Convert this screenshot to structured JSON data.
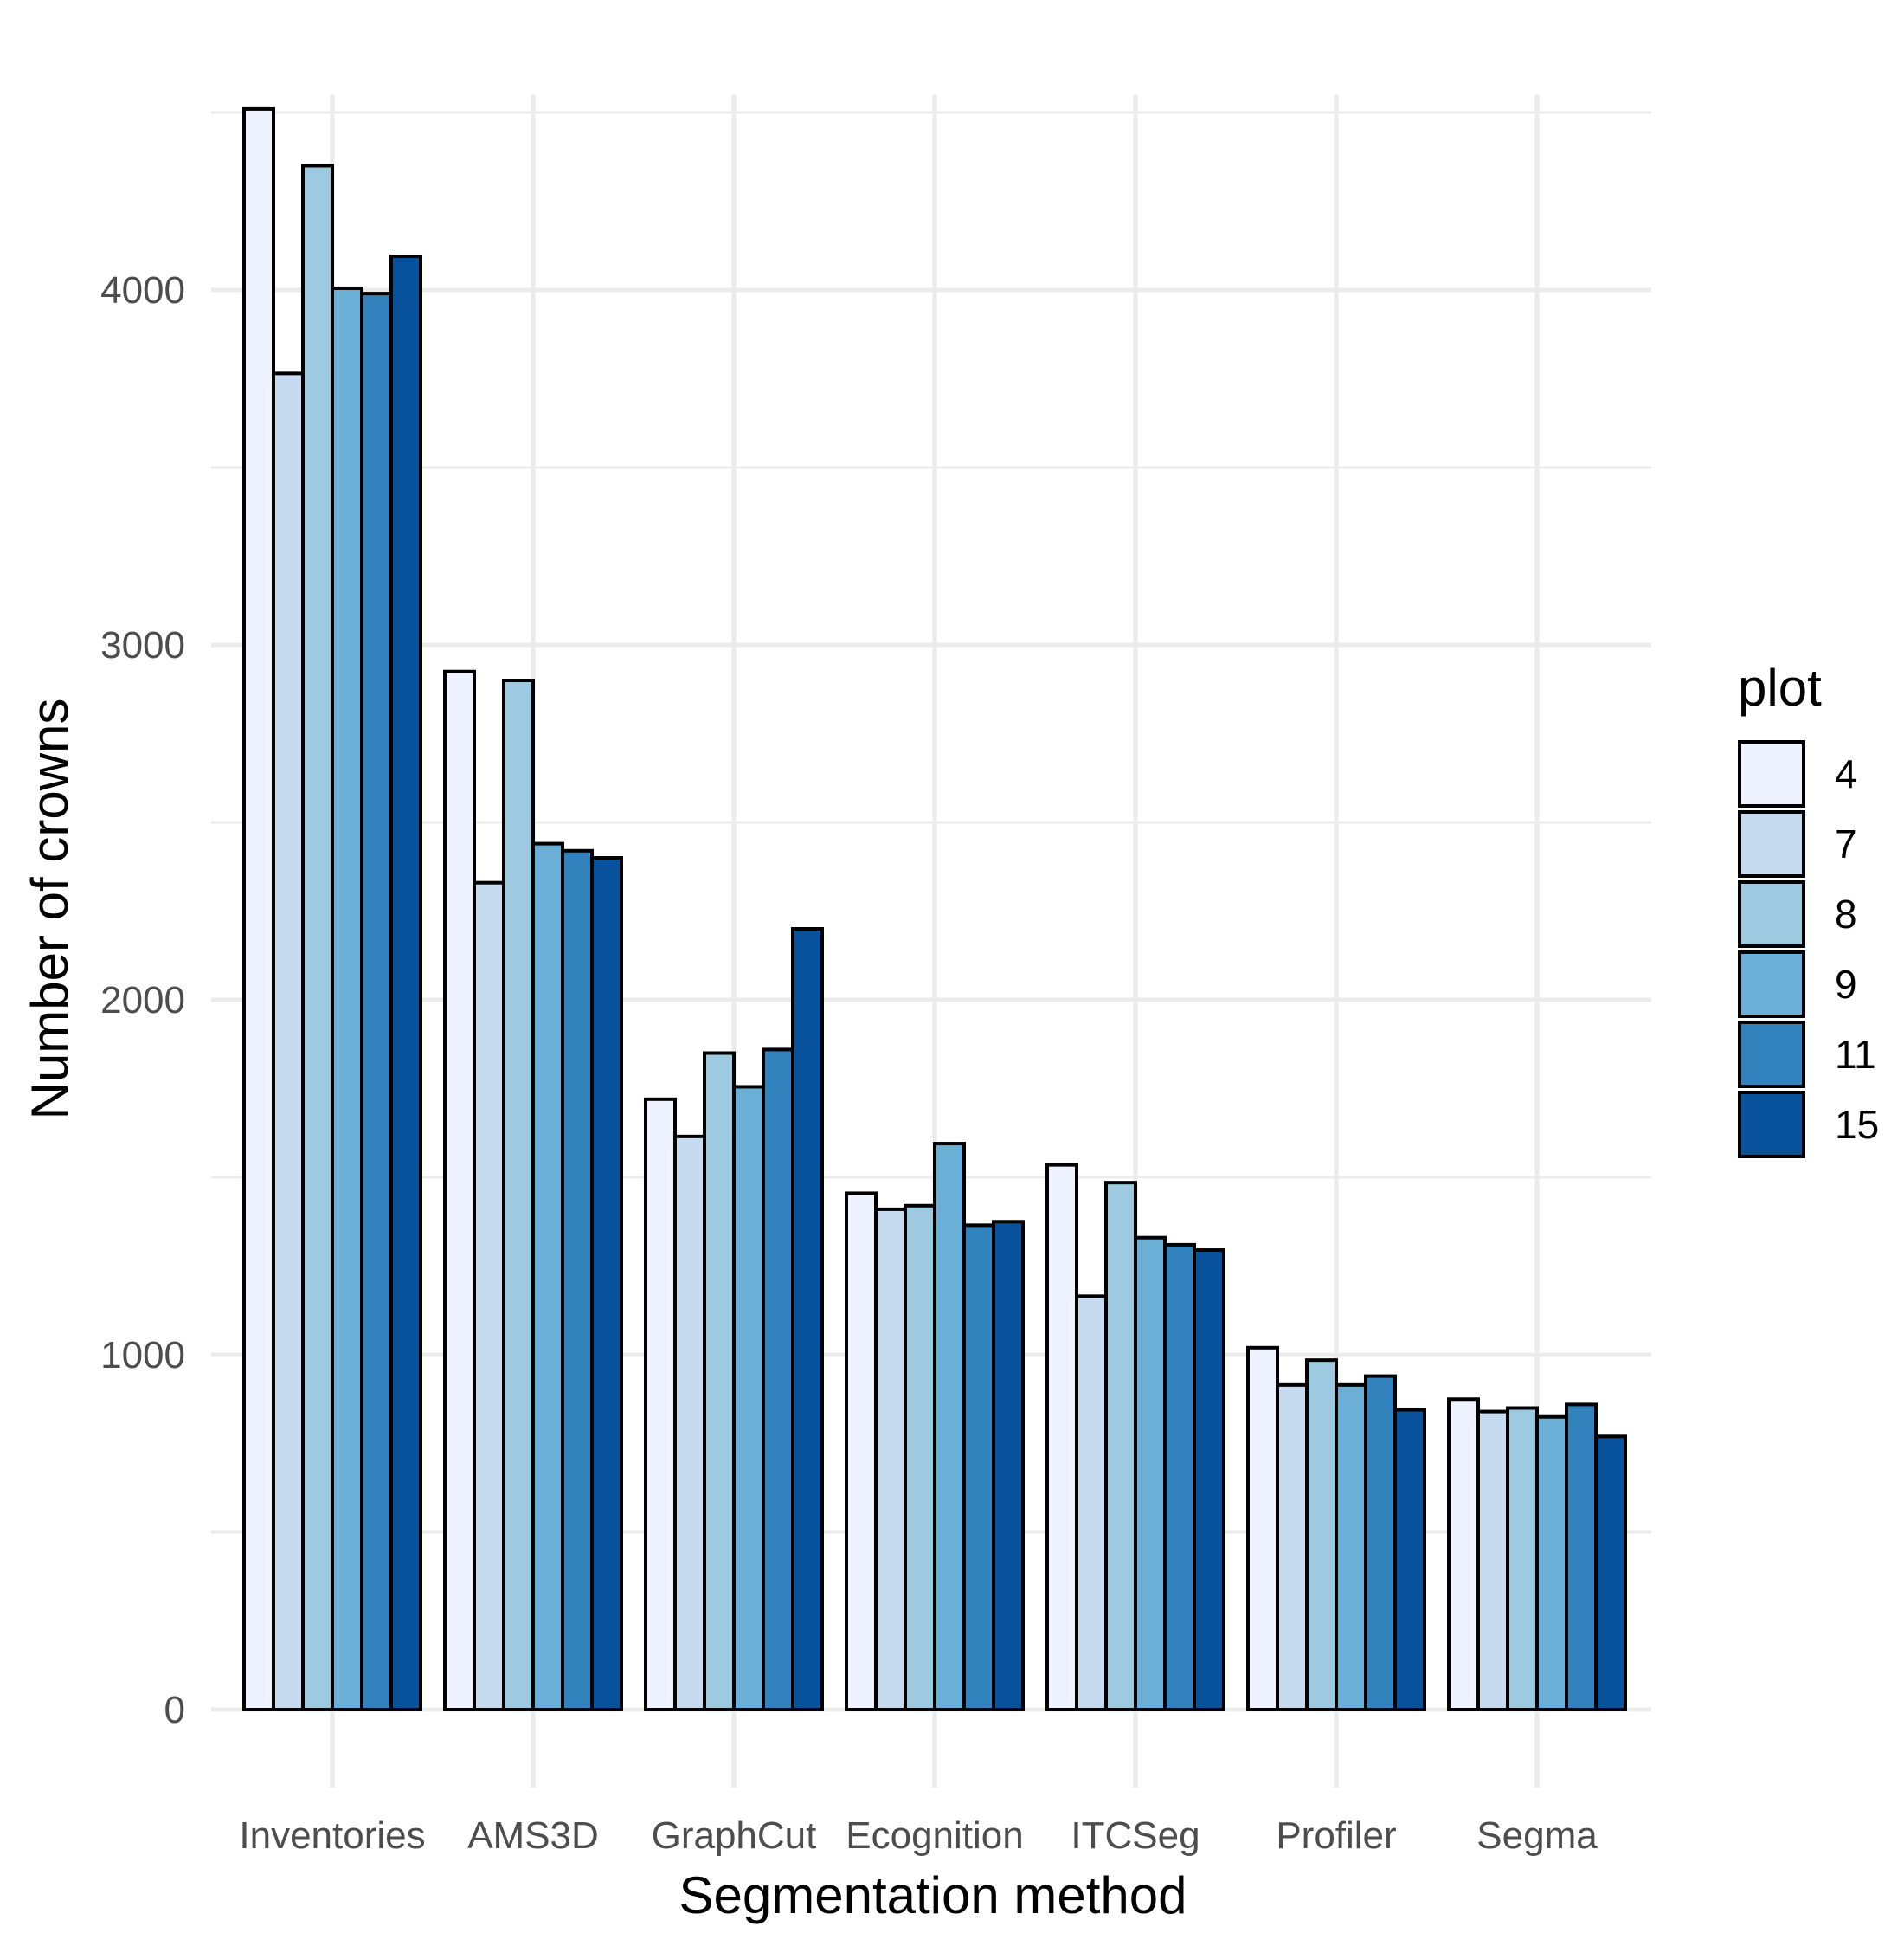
{
  "chart_data": {
    "type": "bar",
    "title": "",
    "xlabel": "Segmentation method",
    "ylabel": "Number of crowns",
    "ylim": [
      0,
      4500
    ],
    "yticks": [
      0,
      1000,
      2000,
      3000,
      4000
    ],
    "grid": true,
    "legend": {
      "title": "plot",
      "position": "right"
    },
    "categories": [
      "Inventories",
      "AMS3D",
      "GraphCut",
      "Ecognition",
      "ITCSeg",
      "Profiler",
      "Segma"
    ],
    "series": [
      {
        "name": "4",
        "color": "#eff3ff",
        "values": [
          4510,
          2925,
          1720,
          1455,
          1535,
          1020,
          875
        ]
      },
      {
        "name": "7",
        "color": "#c6dbef",
        "values": [
          3765,
          2330,
          1615,
          1410,
          1165,
          915,
          840
        ]
      },
      {
        "name": "8",
        "color": "#9ecae1",
        "values": [
          4350,
          2900,
          1850,
          1420,
          1485,
          985,
          850
        ]
      },
      {
        "name": "9",
        "color": "#6baed6",
        "values": [
          4005,
          2440,
          1755,
          1595,
          1330,
          915,
          825
        ]
      },
      {
        "name": "11",
        "color": "#3182bd",
        "values": [
          3990,
          2420,
          1860,
          1365,
          1310,
          940,
          860
        ]
      },
      {
        "name": "15",
        "color": "#08519c",
        "values": [
          4095,
          2400,
          2200,
          1375,
          1295,
          845,
          770
        ]
      }
    ]
  }
}
